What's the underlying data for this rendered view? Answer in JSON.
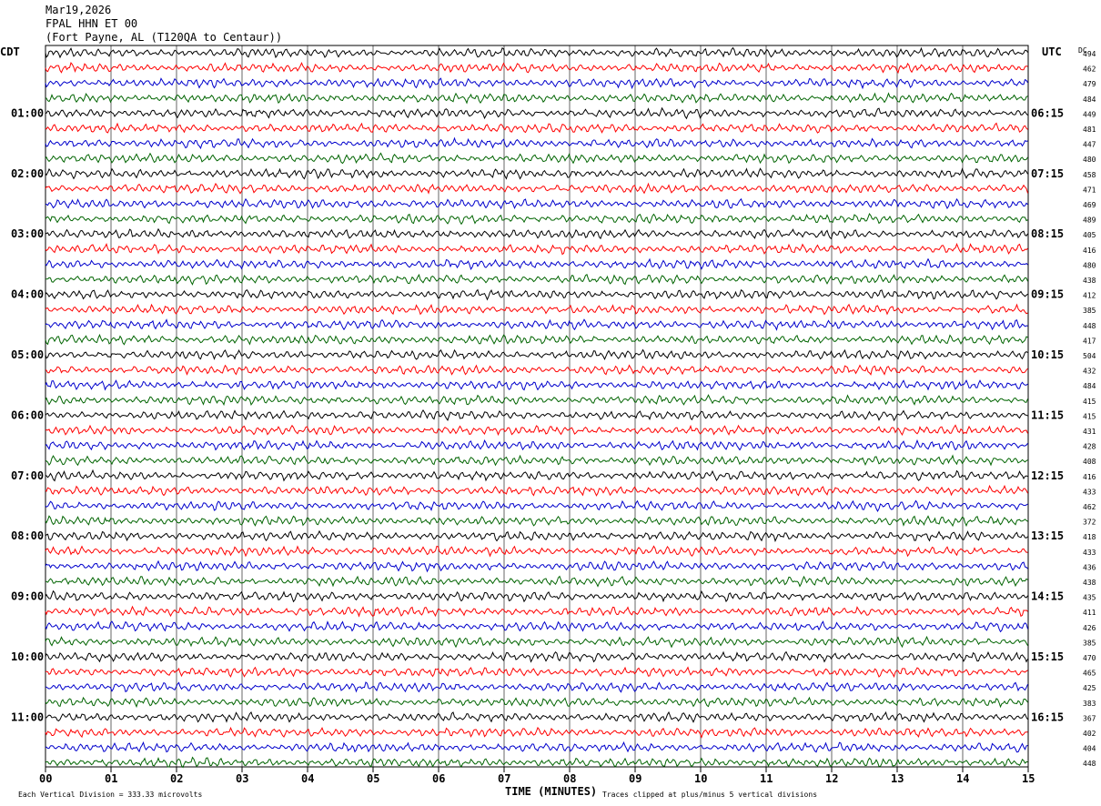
{
  "header": {
    "date": "Mar19,2026",
    "station": "FPAL HHN ET 00",
    "location": "(Fort Payne, AL (T120QA to Centaur))"
  },
  "chart_data": {
    "type": "line",
    "left_timezone": "CDT",
    "right_timezone": "UTC",
    "dc_label": "DC",
    "xlabel": "TIME (MINUTES)",
    "xticks": [
      "00",
      "01",
      "02",
      "03",
      "04",
      "05",
      "06",
      "07",
      "08",
      "09",
      "10",
      "11",
      "12",
      "13",
      "14",
      "15"
    ],
    "xlim": [
      0,
      15
    ],
    "left_hour_labels": [
      "01:00",
      "02:00",
      "03:00",
      "04:00",
      "05:00",
      "06:00",
      "07:00",
      "08:00",
      "09:00",
      "10:00",
      "11:00"
    ],
    "right_hour_labels": [
      "06:15",
      "07:15",
      "08:15",
      "09:15",
      "10:15",
      "11:15",
      "12:15",
      "13:15",
      "14:15",
      "15:15",
      "16:15"
    ],
    "trace_colors": [
      "#000000",
      "#ff0000",
      "#0000cc",
      "#006400"
    ],
    "trace_count": 48,
    "dc_offsets": [
      494,
      462,
      479,
      484,
      449,
      481,
      447,
      480,
      458,
      471,
      469,
      489,
      405,
      416,
      480,
      438,
      412,
      385,
      448,
      417,
      504,
      432,
      484,
      415,
      415,
      431,
      428,
      408,
      416,
      433,
      462,
      372,
      418,
      433,
      436,
      438,
      435,
      411,
      426,
      385,
      470,
      465,
      425,
      383,
      367,
      402,
      404,
      448
    ],
    "footer_left": "Each Vertical Division =  333.33 microvolts",
    "footer_right": "Traces clipped at plus/minus 5 vertical divisions"
  }
}
